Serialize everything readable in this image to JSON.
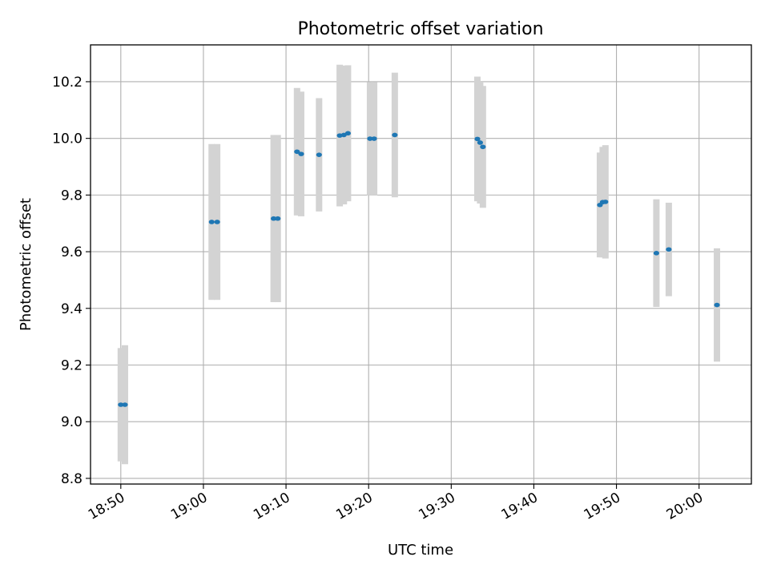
{
  "chart_data": {
    "type": "scatter",
    "title": "Photometric offset variation",
    "xlabel": "UTC time",
    "ylabel": "Photometric offset",
    "x_ticks": [
      "18:50",
      "19:00",
      "19:10",
      "19:20",
      "19:30",
      "19:40",
      "19:50",
      "20:00"
    ],
    "y_ticks": [
      "8.8",
      "9.0",
      "9.2",
      "9.4",
      "9.6",
      "9.8",
      "10.0",
      "10.2"
    ],
    "ylim": [
      8.78,
      10.33
    ],
    "xlim": [
      "18:46:20",
      "20:06:20"
    ],
    "grid": true,
    "point_color": "#1f77b4",
    "errorbar_color": "#d3d3d3",
    "points": [
      {
        "t": "18:50:00",
        "y": 9.06,
        "err": 0.2
      },
      {
        "t": "18:50:30",
        "y": 9.06,
        "err": 0.21
      },
      {
        "t": "19:01:00",
        "y": 9.705,
        "err": 0.275
      },
      {
        "t": "19:01:40",
        "y": 9.705,
        "err": 0.275
      },
      {
        "t": "19:08:30",
        "y": 9.717,
        "err": 0.295
      },
      {
        "t": "19:09:00",
        "y": 9.717,
        "err": 0.295
      },
      {
        "t": "19:11:20",
        "y": 9.953,
        "err": 0.225
      },
      {
        "t": "19:11:50",
        "y": 9.945,
        "err": 0.22
      },
      {
        "t": "19:14:00",
        "y": 9.942,
        "err": 0.2
      },
      {
        "t": "19:16:30",
        "y": 10.01,
        "err": 0.25
      },
      {
        "t": "19:17:00",
        "y": 10.012,
        "err": 0.245
      },
      {
        "t": "19:17:30",
        "y": 10.018,
        "err": 0.24
      },
      {
        "t": "19:20:10",
        "y": 9.999,
        "err": 0.2
      },
      {
        "t": "19:20:40",
        "y": 9.999,
        "err": 0.2
      },
      {
        "t": "19:23:10",
        "y": 10.012,
        "err": 0.22
      },
      {
        "t": "19:33:10",
        "y": 9.998,
        "err": 0.22
      },
      {
        "t": "19:33:30",
        "y": 9.985,
        "err": 0.215
      },
      {
        "t": "19:33:50",
        "y": 9.97,
        "err": 0.215
      },
      {
        "t": "19:48:00",
        "y": 9.765,
        "err": 0.185
      },
      {
        "t": "19:48:20",
        "y": 9.775,
        "err": 0.195
      },
      {
        "t": "19:48:40",
        "y": 9.776,
        "err": 0.2
      },
      {
        "t": "19:54:50",
        "y": 9.595,
        "err": 0.19
      },
      {
        "t": "19:56:20",
        "y": 9.608,
        "err": 0.165
      },
      {
        "t": "20:02:10",
        "y": 9.412,
        "err": 0.2
      }
    ]
  }
}
